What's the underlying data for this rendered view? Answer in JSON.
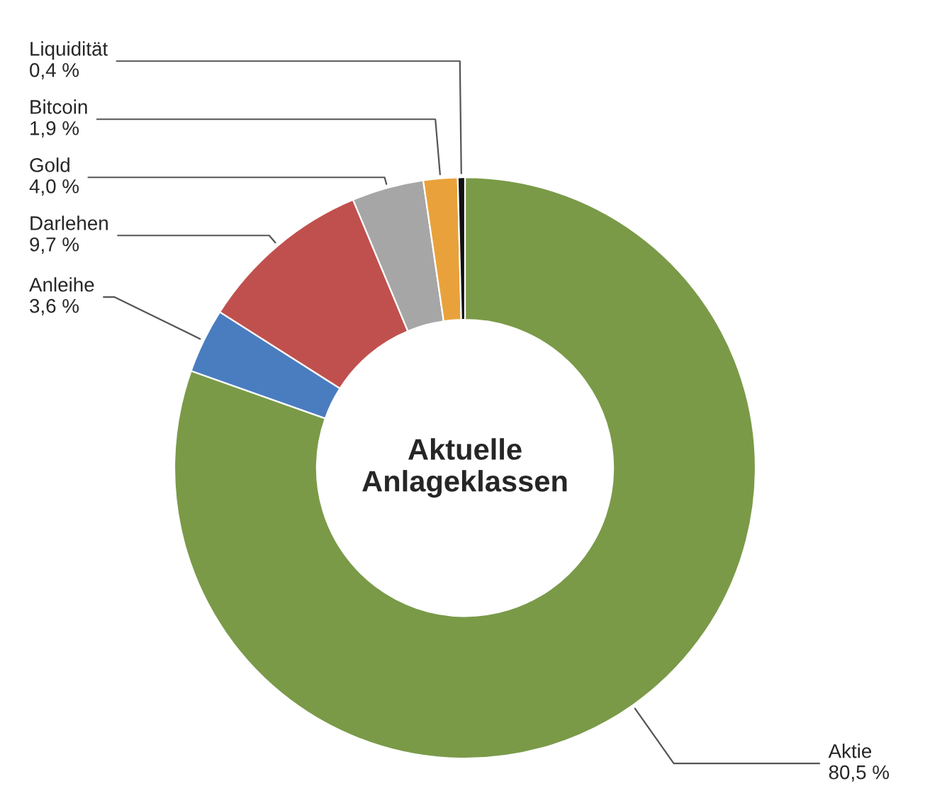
{
  "chart_data": {
    "type": "donut",
    "title": "Aktuelle\nAnlageklassen",
    "categories": [
      "Aktie",
      "Anleihe",
      "Darlehen",
      "Gold",
      "Bitcoin",
      "Liquidität"
    ],
    "values": [
      80.5,
      3.6,
      9.7,
      4.0,
      1.9,
      0.4
    ],
    "value_labels": [
      "80,5 %",
      "3,6 %",
      "9,7 %",
      "4,0 %",
      "1,9 %",
      "0,4 %"
    ],
    "colors": [
      "#7a9a48",
      "#4a7dc0",
      "#c0504d",
      "#a6a6a6",
      "#e9a23b",
      "#111111"
    ],
    "legend": false
  }
}
